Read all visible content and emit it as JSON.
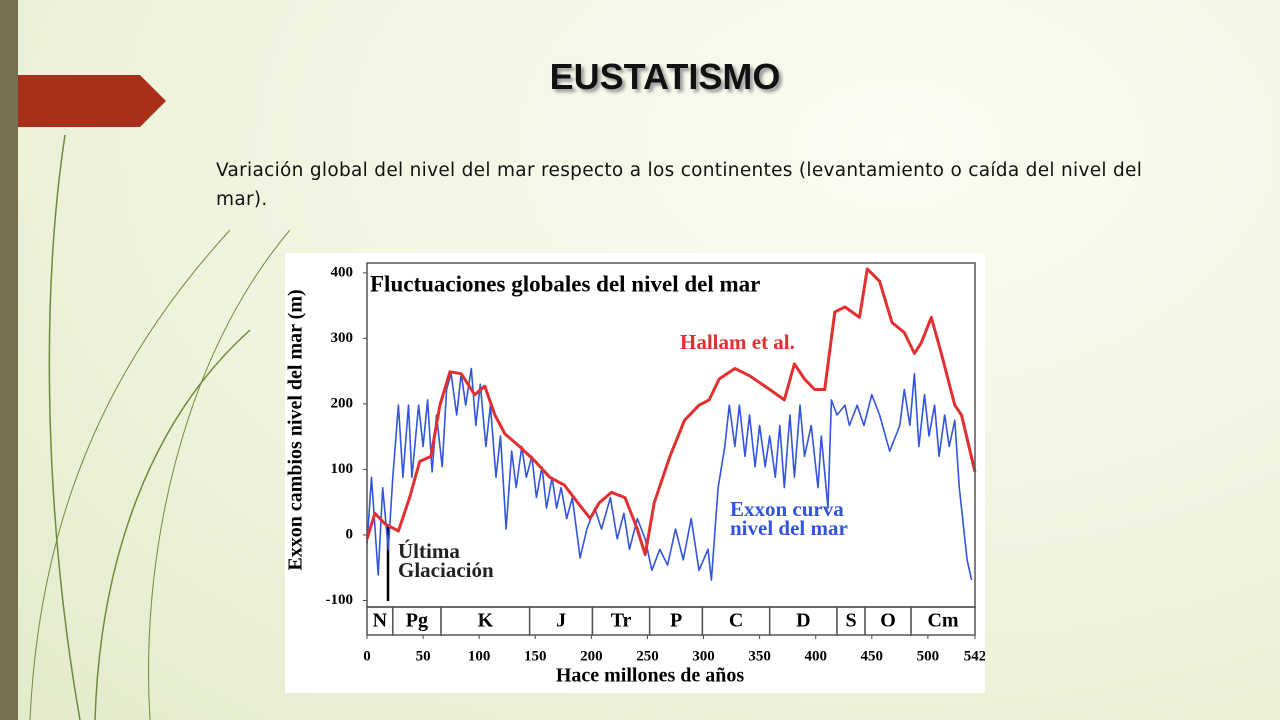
{
  "slide": {
    "title": "EUSTATISMO",
    "text": "Variación global del nivel del mar respecto a los continentes (levantamiento o caída del nivel del mar)."
  },
  "chart_data": {
    "type": "line",
    "title": "Fluctuaciones globales del nivel del mar",
    "x_label": "Hace millones de años",
    "y_label": "Exxon cambios nivel del mar (m)",
    "annotation": "Última Glaciación",
    "xlim": [
      0,
      542
    ],
    "xticks": [
      0,
      50,
      100,
      150,
      200,
      250,
      300,
      350,
      400,
      450,
      500,
      542
    ],
    "ylim": [
      -110,
      415
    ],
    "yticks": [
      -100,
      0,
      100,
      200,
      300,
      400
    ],
    "periods": [
      {
        "label": "N",
        "start": 0,
        "end": 23
      },
      {
        "label": "Pg",
        "start": 23,
        "end": 66
      },
      {
        "label": "K",
        "start": 66,
        "end": 145
      },
      {
        "label": "J",
        "start": 145,
        "end": 201
      },
      {
        "label": "Tr",
        "start": 201,
        "end": 252
      },
      {
        "label": "P",
        "start": 252,
        "end": 299
      },
      {
        "label": "C",
        "start": 299,
        "end": 359
      },
      {
        "label": "D",
        "start": 359,
        "end": 419
      },
      {
        "label": "S",
        "start": 419,
        "end": 444
      },
      {
        "label": "O",
        "start": 444,
        "end": 485
      },
      {
        "label": "Cm",
        "start": 485,
        "end": 542
      }
    ],
    "series": [
      {
        "name": "Hallam et al.",
        "color": "#e03030",
        "x": [
          0,
          7,
          16,
          28,
          38,
          47,
          57,
          65,
          74,
          84,
          96,
          105,
          114,
          123,
          136,
          150,
          163,
          176,
          188,
          199,
          207,
          218,
          230,
          241,
          248,
          256,
          270,
          283,
          296,
          305,
          314,
          328,
          341,
          359,
          372,
          381,
          390,
          399,
          408,
          417,
          426,
          439,
          446,
          457,
          468,
          479,
          488,
          494,
          503,
          512,
          524,
          530,
          542
        ],
        "values": [
          -6,
          33,
          17,
          6,
          57,
          112,
          120,
          198,
          249,
          246,
          214,
          227,
          183,
          154,
          135,
          112,
          88,
          76,
          49,
          25,
          49,
          65,
          57,
          9,
          -30,
          49,
          120,
          175,
          198,
          206,
          238,
          254,
          243,
          222,
          206,
          261,
          238,
          222,
          222,
          340,
          348,
          332,
          406,
          387,
          324,
          309,
          277,
          293,
          332,
          277,
          198,
          183,
          96
        ]
      },
      {
        "name": "Exxon curva nivel del mar",
        "color": "#3355dd",
        "x": [
          0,
          4,
          10,
          14,
          19,
          23,
          28,
          32,
          37,
          40,
          46,
          50,
          54,
          58,
          62,
          67,
          71,
          75,
          80,
          84,
          88,
          93,
          97,
          101,
          106,
          110,
          115,
          119,
          124,
          129,
          133,
          138,
          142,
          147,
          151,
          156,
          160,
          165,
          169,
          173,
          178,
          183,
          190,
          196,
          203,
          209,
          217,
          223,
          229,
          234,
          241,
          248,
          254,
          261,
          268,
          275,
          282,
          289,
          296,
          304,
          307,
          313,
          319,
          323,
          328,
          332,
          337,
          341,
          346,
          350,
          355,
          359,
          364,
          368,
          372,
          377,
          381,
          386,
          390,
          396,
          402,
          405,
          411,
          414,
          419,
          426,
          430,
          437,
          443,
          450,
          457,
          466,
          475,
          479,
          484,
          488,
          492,
          497,
          501,
          506,
          510,
          515,
          519,
          524,
          528,
          535,
          539
        ],
        "values": [
          -14,
          88,
          -61,
          72,
          -22,
          88,
          198,
          88,
          198,
          88,
          198,
          135,
          206,
          96,
          183,
          104,
          222,
          246,
          183,
          246,
          198,
          254,
          167,
          230,
          135,
          198,
          88,
          151,
          9,
          128,
          72,
          135,
          88,
          120,
          57,
          104,
          41,
          88,
          41,
          72,
          25,
          57,
          -35,
          9,
          41,
          9,
          57,
          -6,
          33,
          -22,
          25,
          -6,
          -54,
          -22,
          -46,
          9,
          -38,
          25,
          -54,
          -22,
          -69,
          72,
          135,
          198,
          135,
          198,
          120,
          183,
          104,
          167,
          104,
          151,
          88,
          167,
          72,
          183,
          88,
          198,
          120,
          167,
          72,
          151,
          41,
          206,
          183,
          198,
          167,
          198,
          167,
          214,
          183,
          128,
          167,
          222,
          167,
          246,
          135,
          214,
          151,
          198,
          120,
          183,
          135,
          175,
          72,
          -38,
          -69
        ]
      }
    ]
  }
}
